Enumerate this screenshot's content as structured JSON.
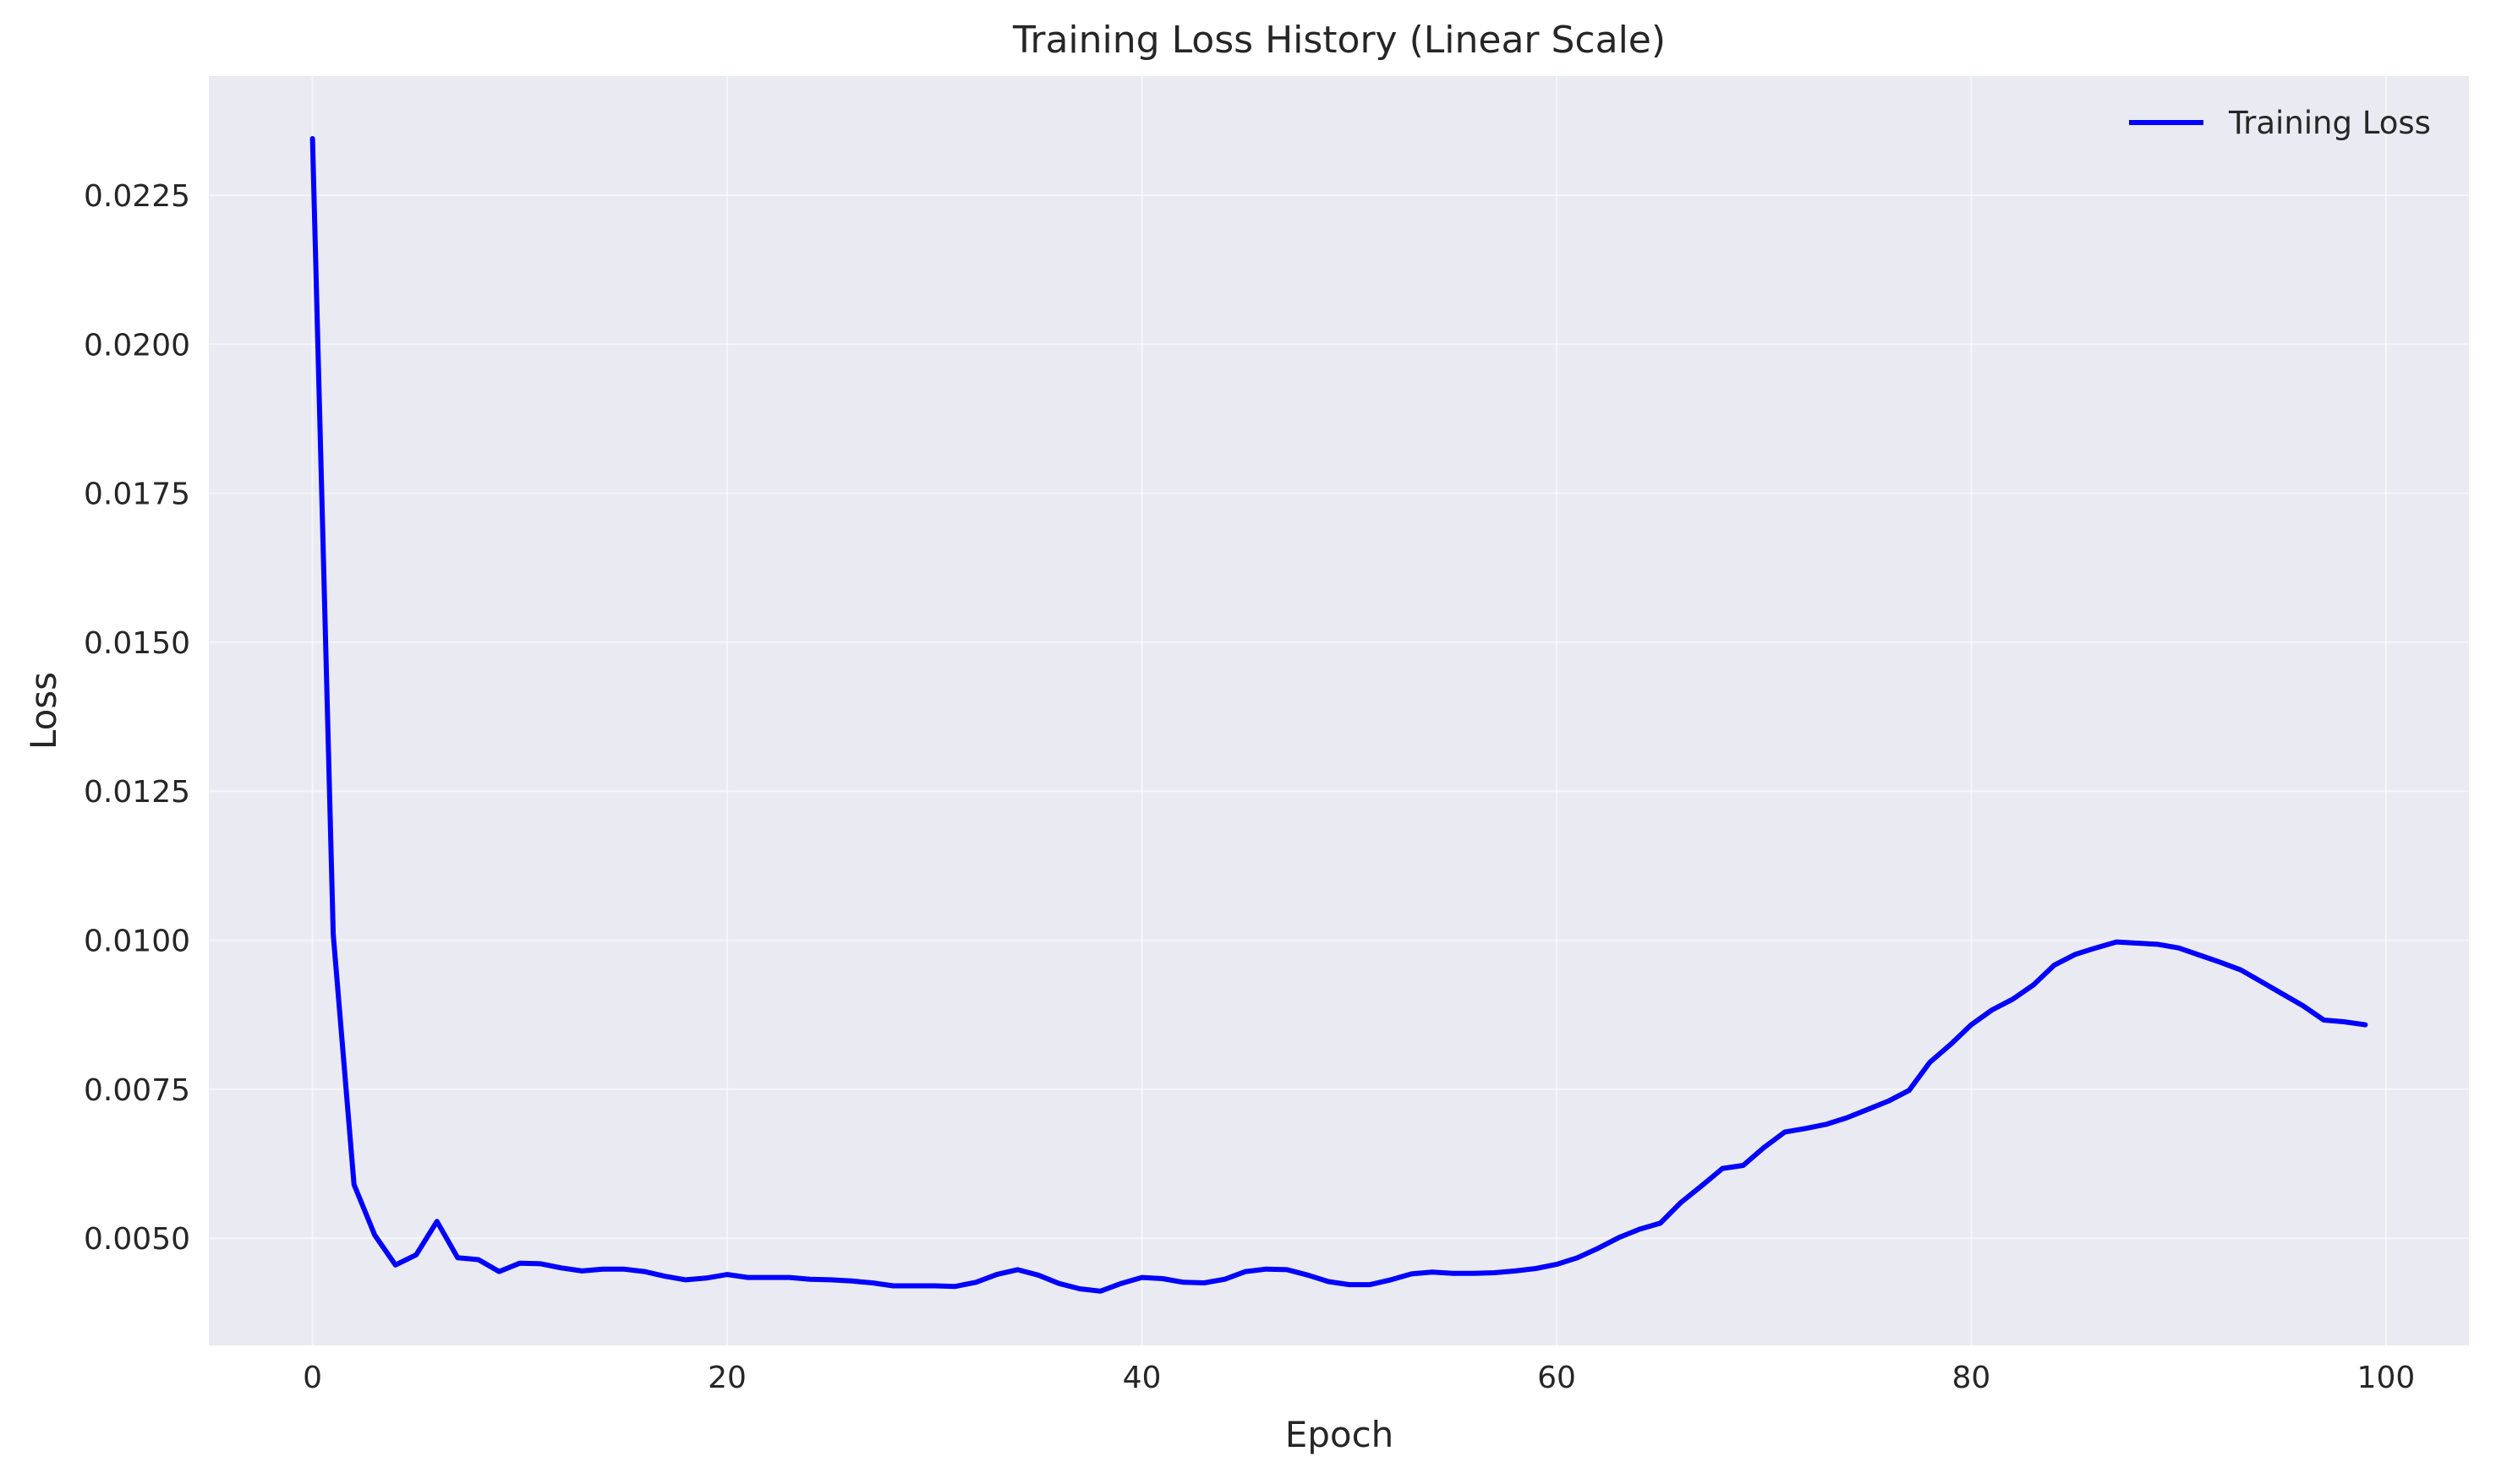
{
  "chart_data": {
    "type": "line",
    "title": "Training Loss History (Linear Scale)",
    "xlabel": "Epoch",
    "ylabel": "Loss",
    "xlim": [
      -5,
      104
    ],
    "ylim": [
      0.0032,
      0.0245
    ],
    "xticks": [
      0,
      20,
      40,
      60,
      80,
      100
    ],
    "xtick_labels": [
      "0",
      "20",
      "40",
      "60",
      "80",
      "100"
    ],
    "yticks": [
      0.005,
      0.0075,
      0.01,
      0.0125,
      0.015,
      0.0175,
      0.02,
      0.0225
    ],
    "ytick_labels": [
      "0.0050",
      "0.0075",
      "0.0100",
      "0.0125",
      "0.0150",
      "0.0175",
      "0.0200",
      "0.0225"
    ],
    "grid": true,
    "legend_position": "top-right",
    "colors": {
      "line": "#0000ff",
      "plot_background": "#eaeaf2",
      "grid": "#ffffff"
    },
    "series": [
      {
        "name": "Training Loss",
        "x": [
          0,
          1,
          2,
          3,
          4,
          5,
          6,
          7,
          8,
          9,
          10,
          11,
          12,
          13,
          14,
          15,
          16,
          17,
          18,
          19,
          20,
          21,
          22,
          23,
          24,
          25,
          26,
          27,
          28,
          29,
          30,
          31,
          32,
          33,
          34,
          35,
          36,
          37,
          38,
          39,
          40,
          41,
          42,
          43,
          44,
          45,
          46,
          47,
          48,
          49,
          50,
          51,
          52,
          53,
          54,
          55,
          56,
          57,
          58,
          59,
          60,
          61,
          62,
          63,
          64,
          65,
          66,
          67,
          68,
          69,
          70,
          71,
          72,
          73,
          74,
          75,
          76,
          77,
          78,
          79,
          80,
          81,
          82,
          83,
          84,
          85,
          86,
          87,
          88,
          89,
          90,
          91,
          92,
          93,
          94,
          95,
          96,
          97,
          98,
          99
        ],
        "y": [
          0.02345,
          0.0101,
          0.0059,
          0.00505,
          0.00455,
          0.00472,
          0.00528,
          0.00467,
          0.00464,
          0.00444,
          0.00458,
          0.00457,
          0.0045,
          0.00445,
          0.00448,
          0.00448,
          0.00444,
          0.00436,
          0.0043,
          0.00433,
          0.00439,
          0.00434,
          0.00434,
          0.00434,
          0.00431,
          0.0043,
          0.00428,
          0.00425,
          0.0042,
          0.0042,
          0.0042,
          0.00419,
          0.00426,
          0.00439,
          0.00447,
          0.00438,
          0.00424,
          0.00415,
          0.00411,
          0.00424,
          0.00434,
          0.00432,
          0.00426,
          0.00425,
          0.00431,
          0.00444,
          0.00448,
          0.00447,
          0.00438,
          0.00427,
          0.00422,
          0.00422,
          0.0043,
          0.0044,
          0.00443,
          0.00441,
          0.00441,
          0.00442,
          0.00445,
          0.00449,
          0.00456,
          0.00467,
          0.00483,
          0.00501,
          0.00515,
          0.00525,
          0.0056,
          0.00588,
          0.00617,
          0.00622,
          0.00652,
          0.00678,
          0.00684,
          0.00691,
          0.00702,
          0.00716,
          0.0073,
          0.00748,
          0.00795,
          0.00825,
          0.00858,
          0.00883,
          0.00901,
          0.00925,
          0.00958,
          0.00976,
          0.00987,
          0.00997,
          0.00995,
          0.00993,
          0.00987,
          0.00975,
          0.00963,
          0.0095,
          0.0093,
          0.0091,
          0.0089,
          0.00866,
          0.00863,
          0.00858
        ]
      }
    ]
  }
}
